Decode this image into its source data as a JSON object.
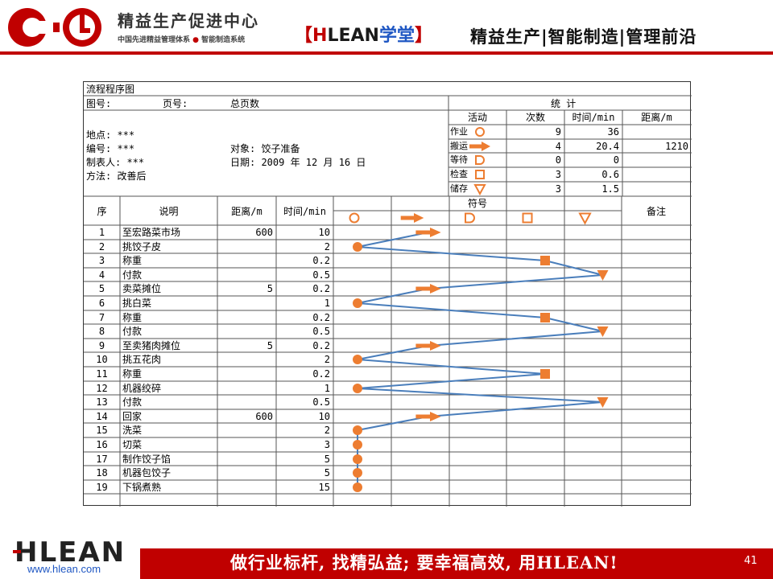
{
  "header": {
    "brand_title": "精益生产促进中心",
    "brand_sub_1": "中国先进精益管理体系",
    "brand_sub_dot": "●",
    "brand_sub_2": "智能制造系统",
    "tag_open": "【",
    "tag_h": "H",
    "tag_lean": "LEAN",
    "tag_xuetang": "学堂",
    "tag_close": "】",
    "slogan": "精益生产|智能制造|管理前沿"
  },
  "form": {
    "title": "流程程序图",
    "tuhao": "图号:",
    "yehao": "页号:",
    "zongyeshu": "总页数",
    "didian": "地点: ***",
    "bianhao": "编号:  ***",
    "zhibiaoren": "制表人: ***",
    "fangfa": "方法: 改善后",
    "duixiang": "对象: 饺子准备",
    "riqi": "日期: 2009 年  12 月 16  日",
    "stats": {
      "title": "统   计",
      "headers": [
        "活动",
        "次数",
        "时间/min",
        "距离/m"
      ],
      "rows": [
        {
          "activity": "作业",
          "symbol": "circle",
          "count": "9",
          "time": "36",
          "distance": ""
        },
        {
          "activity": "搬运",
          "symbol": "arrow",
          "count": "4",
          "time": "20.4",
          "distance": "1210"
        },
        {
          "activity": "等待",
          "symbol": "d-shape",
          "count": "0",
          "time": "0",
          "distance": ""
        },
        {
          "activity": "检查",
          "symbol": "square",
          "count": "3",
          "time": "0.6",
          "distance": ""
        },
        {
          "activity": "储存",
          "symbol": "triangle",
          "count": "3",
          "time": "1.5",
          "distance": ""
        }
      ]
    },
    "columns": {
      "seq": "序",
      "desc": "说明",
      "dist": "距离/m",
      "time": "时间/min",
      "symbols": "符号",
      "note": "备注"
    },
    "symbol_order": [
      "circle",
      "arrow",
      "d-shape",
      "square",
      "triangle"
    ],
    "steps": [
      {
        "seq": "1",
        "desc": "至宏路菜市场",
        "dist": "600",
        "time": "10",
        "symbol": "arrow"
      },
      {
        "seq": "2",
        "desc": "挑饺子皮",
        "dist": "",
        "time": "2",
        "symbol": "circle"
      },
      {
        "seq": "3",
        "desc": "称重",
        "dist": "",
        "time": "0.2",
        "symbol": "square"
      },
      {
        "seq": "4",
        "desc": "付款",
        "dist": "",
        "time": "0.5",
        "symbol": "triangle"
      },
      {
        "seq": "5",
        "desc": "卖菜摊位",
        "dist": "5",
        "time": "0.2",
        "symbol": "arrow"
      },
      {
        "seq": "6",
        "desc": "挑白菜",
        "dist": "",
        "time": "1",
        "symbol": "circle"
      },
      {
        "seq": "7",
        "desc": "称重",
        "dist": "",
        "time": "0.2",
        "symbol": "square"
      },
      {
        "seq": "8",
        "desc": "付款",
        "dist": "",
        "time": "0.5",
        "symbol": "triangle"
      },
      {
        "seq": "9",
        "desc": "至卖猪肉摊位",
        "dist": "5",
        "time": "0.2",
        "symbol": "arrow"
      },
      {
        "seq": "10",
        "desc": "挑五花肉",
        "dist": "",
        "time": "2",
        "symbol": "circle"
      },
      {
        "seq": "11",
        "desc": "称重",
        "dist": "",
        "time": "0.2",
        "symbol": "square"
      },
      {
        "seq": "12",
        "desc": "机器绞碎",
        "dist": "",
        "time": "1",
        "symbol": "circle"
      },
      {
        "seq": "13",
        "desc": "付款",
        "dist": "",
        "time": "0.5",
        "symbol": "triangle"
      },
      {
        "seq": "14",
        "desc": "回家",
        "dist": "600",
        "time": "10",
        "symbol": "arrow"
      },
      {
        "seq": "15",
        "desc": "洗菜",
        "dist": "",
        "time": "2",
        "symbol": "circle"
      },
      {
        "seq": "16",
        "desc": "切菜",
        "dist": "",
        "time": "3",
        "symbol": "circle"
      },
      {
        "seq": "17",
        "desc": "制作饺子馅",
        "dist": "",
        "time": "5",
        "symbol": "circle"
      },
      {
        "seq": "18",
        "desc": "机器包饺子",
        "dist": "",
        "time": "5",
        "symbol": "circle"
      },
      {
        "seq": "19",
        "desc": "下锅煮熟",
        "dist": "",
        "time": "15",
        "symbol": "circle"
      }
    ]
  },
  "footer": {
    "logo_text": "HLEAN",
    "url": "www.hlean.com",
    "slogan": "做行业标杆, 找精弘益; 要幸福高效, 用HLEAN!",
    "page": "41"
  },
  "colors": {
    "brand_red": "#c00000",
    "brand_blue": "#1f57c3",
    "symbol_orange": "#ed7d31",
    "flow_line": "#4a7ebb"
  }
}
